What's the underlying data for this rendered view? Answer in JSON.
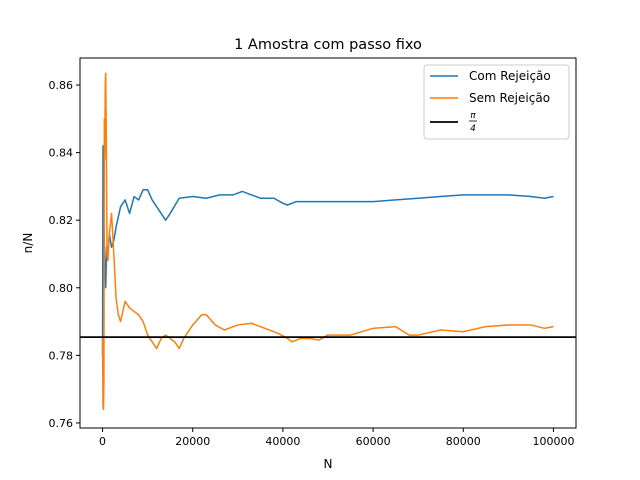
{
  "chart_data": {
    "type": "line",
    "title": "1 Amostra com passo fixo",
    "xlabel": "N",
    "ylabel": "n/N",
    "xlim": [
      -5000,
      105000
    ],
    "ylim": [
      0.7585,
      0.868
    ],
    "xticks": [
      0,
      20000,
      40000,
      60000,
      80000,
      100000
    ],
    "xtick_labels": [
      "0",
      "20000",
      "40000",
      "60000",
      "80000",
      "100000"
    ],
    "yticks": [
      0.76,
      0.78,
      0.8,
      0.82,
      0.84,
      0.86
    ],
    "ytick_labels": [
      "0.76",
      "0.78",
      "0.80",
      "0.82",
      "0.84",
      "0.86"
    ],
    "grid": false,
    "legend_position": "top-right",
    "series": [
      {
        "name": "Com Rejeição",
        "color": "#1f77b4",
        "x": [
          0,
          100,
          200,
          300,
          500,
          700,
          900,
          1200,
          1500,
          2000,
          2500,
          3000,
          4000,
          5000,
          6000,
          7000,
          8000,
          9000,
          10000,
          11000,
          12000,
          13000,
          14000,
          15000,
          17000,
          20000,
          23000,
          26000,
          29000,
          31000,
          32000,
          35000,
          38000,
          40000,
          41000,
          43000,
          46000,
          50000,
          55000,
          60000,
          65000,
          70000,
          75000,
          80000,
          85000,
          90000,
          95000,
          98000,
          100000
        ],
        "y": [
          0.78,
          0.842,
          0.835,
          0.82,
          0.806,
          0.8,
          0.812,
          0.81,
          0.816,
          0.812,
          0.814,
          0.818,
          0.824,
          0.826,
          0.822,
          0.827,
          0.826,
          0.829,
          0.829,
          0.826,
          0.824,
          0.822,
          0.82,
          0.822,
          0.8265,
          0.827,
          0.8265,
          0.8275,
          0.8275,
          0.8285,
          0.828,
          0.8265,
          0.8265,
          0.825,
          0.8245,
          0.8255,
          0.8255,
          0.8255,
          0.8255,
          0.8255,
          0.826,
          0.8265,
          0.827,
          0.8275,
          0.8275,
          0.8275,
          0.827,
          0.8265,
          0.827
        ]
      },
      {
        "name": "Sem Rejeição",
        "color": "#ff7f0e",
        "x": [
          0,
          100,
          200,
          300,
          400,
          500,
          600,
          700,
          800,
          900,
          1000,
          1200,
          1500,
          2000,
          2500,
          3000,
          3500,
          4000,
          5000,
          6000,
          7000,
          8000,
          9000,
          10000,
          11000,
          12000,
          13000,
          14000,
          15000,
          16000,
          17000,
          18000,
          20000,
          22000,
          23000,
          25000,
          27000,
          30000,
          33000,
          36000,
          39000,
          41000,
          42000,
          44000,
          46000,
          48000,
          50000,
          55000,
          60000,
          65000,
          68000,
          70000,
          75000,
          80000,
          85000,
          90000,
          95000,
          98000,
          100000
        ],
        "y": [
          0.785,
          0.765,
          0.764,
          0.772,
          0.85,
          0.838,
          0.8605,
          0.8635,
          0.85,
          0.831,
          0.81,
          0.808,
          0.816,
          0.822,
          0.81,
          0.797,
          0.792,
          0.79,
          0.796,
          0.794,
          0.793,
          0.792,
          0.79,
          0.786,
          0.784,
          0.782,
          0.785,
          0.786,
          0.785,
          0.784,
          0.782,
          0.785,
          0.789,
          0.792,
          0.792,
          0.789,
          0.7875,
          0.789,
          0.7895,
          0.788,
          0.7865,
          0.785,
          0.784,
          0.785,
          0.785,
          0.7845,
          0.786,
          0.786,
          0.788,
          0.7885,
          0.786,
          0.786,
          0.7875,
          0.787,
          0.7885,
          0.789,
          0.789,
          0.788,
          0.7885
        ]
      },
      {
        "name": "π/4",
        "color": "#000000",
        "y": 0.7853981634,
        "legend_label_top": "π",
        "legend_label_bottom": "4"
      }
    ]
  }
}
